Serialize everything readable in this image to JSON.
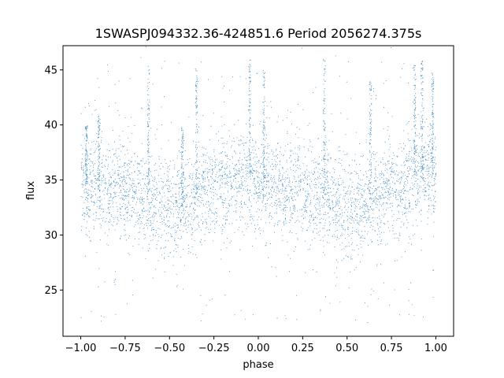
{
  "chart_data": {
    "type": "scatter",
    "title": "1SWASPJ094332.36-424851.6 Period 2056274.375s",
    "xlabel": "phase",
    "ylabel": "flux",
    "xlim": [
      -1.1,
      1.1
    ],
    "ylim": [
      20.8,
      47.2
    ],
    "xticks": [
      -1.0,
      -0.75,
      -0.5,
      -0.25,
      0.0,
      0.25,
      0.5,
      0.75,
      1.0
    ],
    "xtick_labels": [
      "−1.00",
      "−0.75",
      "−0.50",
      "−0.25",
      "0.00",
      "0.25",
      "0.50",
      "0.75",
      "1.00"
    ],
    "yticks": [
      25,
      30,
      35,
      40,
      45
    ],
    "ytick_labels": [
      "25",
      "30",
      "35",
      "40",
      "45"
    ],
    "grid": false,
    "series": [
      {
        "color": "#1f77b4",
        "profile_phase": [
          -1.0,
          -0.95,
          -0.9,
          -0.85,
          -0.8,
          -0.75,
          -0.7,
          -0.65,
          -0.6,
          -0.55,
          -0.5,
          -0.45,
          -0.4,
          -0.35,
          -0.3,
          -0.25,
          -0.2,
          -0.15,
          -0.1,
          -0.05,
          0.0,
          0.05,
          0.1,
          0.15,
          0.2,
          0.25,
          0.3,
          0.35,
          0.4,
          0.45,
          0.5,
          0.55,
          0.6,
          0.65,
          0.7,
          0.75,
          0.8,
          0.85,
          0.9,
          0.95,
          1.0
        ],
        "profile_median_flux": [
          34.8,
          34.6,
          34.0,
          33.8,
          34.3,
          34.4,
          33.8,
          33.5,
          33.2,
          33.0,
          32.6,
          32.4,
          32.8,
          33.6,
          34.0,
          34.6,
          34.8,
          34.5,
          35.0,
          35.2,
          35.0,
          34.6,
          34.2,
          34.0,
          34.3,
          34.0,
          33.8,
          33.5,
          33.2,
          32.8,
          32.5,
          32.8,
          33.0,
          33.5,
          34.0,
          34.4,
          34.6,
          34.8,
          35.5,
          36.0,
          35.2
        ],
        "spread_flux": 2.2,
        "flare_phases": [
          -0.97,
          -0.9,
          -0.62,
          -0.43,
          -0.35,
          -0.05,
          0.03,
          0.37,
          0.63,
          0.88,
          0.92,
          0.98
        ],
        "flare_peak_flux": [
          40.0,
          41.0,
          45.5,
          40.0,
          45.5,
          46.0,
          45.0,
          46.0,
          44.0,
          45.5,
          46.0,
          45.0
        ]
      }
    ]
  }
}
